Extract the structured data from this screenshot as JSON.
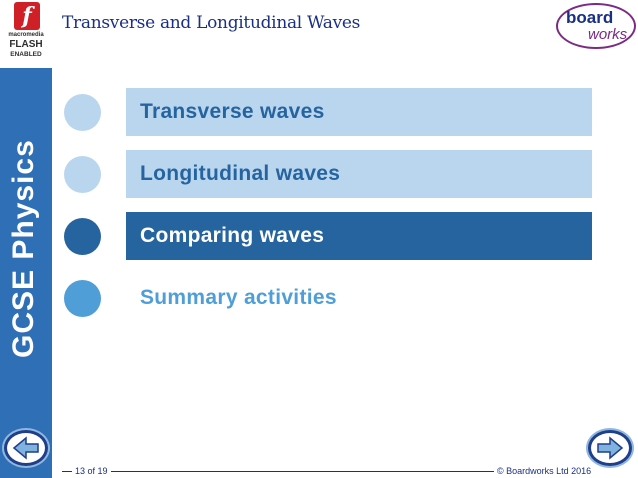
{
  "header": {
    "title": "Transverse and Longitudinal Waves",
    "logo_top": "board",
    "logo_bottom": "works"
  },
  "sidebar": {
    "flash_line1": "macromedia",
    "flash_line2": "FLASH",
    "flash_line3": "ENABLED",
    "subject": "GCSE Physics"
  },
  "menu": [
    {
      "label": "Transverse waves",
      "state": "light"
    },
    {
      "label": "Longitudinal waves",
      "state": "light"
    },
    {
      "label": "Comparing waves",
      "state": "active"
    },
    {
      "label": "Summary activities",
      "state": "plain"
    }
  ],
  "footer": {
    "page": "13 of 19",
    "copyright": "© Boardworks Ltd 2016"
  },
  "colors": {
    "accent": "#2e6fb5",
    "title": "#1a2f86",
    "active": "#2664a0",
    "light": "#bad6ef",
    "plain": "#4f9ed8",
    "logo_purple": "#7b2b83"
  },
  "icons": {
    "flash": "flash-f-icon",
    "prev": "arrow-left-icon",
    "next": "arrow-right-icon"
  }
}
